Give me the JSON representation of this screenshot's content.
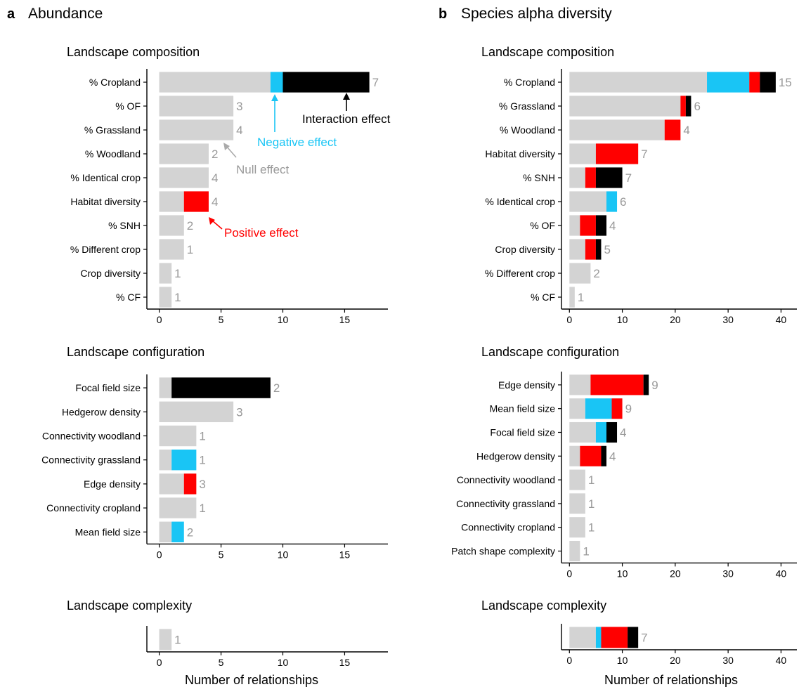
{
  "colors": {
    "null": "#d3d3d3",
    "negative": "#19c5f5",
    "positive": "#ff0000",
    "interaction": "#000000",
    "count": "#999999",
    "axis": "#000000"
  },
  "panels": [
    {
      "letter": "a",
      "title": "Abundance"
    },
    {
      "letter": "b",
      "title": "Species alpha diversity"
    }
  ],
  "annotations": {
    "interaction": "Interaction effect",
    "negative": "Negative effect",
    "null": "Null effect",
    "positive": "Positive effect"
  },
  "chart_data": [
    {
      "type": "bar",
      "stacked": true,
      "orientation": "horizontal",
      "panel": "a",
      "title": "Landscape composition",
      "xlabel": "",
      "xlim": [
        -1,
        18.5
      ],
      "xticks": [
        0,
        5,
        10,
        15
      ],
      "categories": [
        "% Cropland",
        "% OF",
        "% Grassland",
        "% Woodland",
        "% Identical crop",
        "Habitat diversity",
        "% SNH",
        "% Different crop",
        "Crop diversity",
        "% CF"
      ],
      "series": [
        {
          "key": "null",
          "values": [
            9,
            6,
            6,
            4,
            4,
            2,
            2,
            2,
            1,
            1
          ]
        },
        {
          "key": "negative",
          "values": [
            1,
            0,
            0,
            0,
            0,
            0,
            0,
            0,
            0,
            0
          ]
        },
        {
          "key": "positive",
          "values": [
            0,
            0,
            0,
            0,
            0,
            2,
            0,
            0,
            0,
            0
          ]
        },
        {
          "key": "interaction",
          "values": [
            7,
            0,
            0,
            0,
            0,
            0,
            0,
            0,
            0,
            0
          ]
        }
      ],
      "counts": [
        7,
        3,
        4,
        2,
        4,
        4,
        2,
        1,
        1,
        1
      ]
    },
    {
      "type": "bar",
      "stacked": true,
      "orientation": "horizontal",
      "panel": "a",
      "title": "Landscape configuration",
      "xlabel": "",
      "xlim": [
        -1,
        18.5
      ],
      "xticks": [
        0,
        5,
        10,
        15
      ],
      "categories": [
        "Focal field size",
        "Hedgerow density",
        "Connectivity woodland",
        "Connectivity grassland",
        "Edge density",
        "Connectivity cropland",
        "Mean field size"
      ],
      "series": [
        {
          "key": "null",
          "values": [
            1,
            6,
            3,
            1,
            2,
            3,
            1
          ]
        },
        {
          "key": "negative",
          "values": [
            0,
            0,
            0,
            2,
            0,
            0,
            1
          ]
        },
        {
          "key": "positive",
          "values": [
            0,
            0,
            0,
            0,
            1,
            0,
            0
          ]
        },
        {
          "key": "interaction",
          "values": [
            8,
            0,
            0,
            0,
            0,
            0,
            0
          ]
        }
      ],
      "counts": [
        2,
        3,
        1,
        1,
        3,
        1,
        2
      ]
    },
    {
      "type": "bar",
      "stacked": true,
      "orientation": "horizontal",
      "panel": "a",
      "title": "Landscape complexity",
      "xlabel": "Number of relationships",
      "xlim": [
        -1,
        18.5
      ],
      "xticks": [
        0,
        5,
        10,
        15
      ],
      "categories": [
        ""
      ],
      "series": [
        {
          "key": "null",
          "values": [
            1
          ]
        },
        {
          "key": "negative",
          "values": [
            0
          ]
        },
        {
          "key": "positive",
          "values": [
            0
          ]
        },
        {
          "key": "interaction",
          "values": [
            0
          ]
        }
      ],
      "counts": [
        1
      ]
    },
    {
      "type": "bar",
      "stacked": true,
      "orientation": "horizontal",
      "panel": "b",
      "title": "Landscape composition",
      "xlabel": "",
      "xlim": [
        -1.5,
        43
      ],
      "xticks": [
        0,
        10,
        20,
        30,
        40
      ],
      "categories": [
        "% Cropland",
        "% Grassland",
        "% Woodland",
        "Habitat diversity",
        "% SNH",
        "% Identical crop",
        "% OF",
        "Crop diversity",
        "% Different crop",
        "% CF"
      ],
      "series": [
        {
          "key": "null",
          "values": [
            26,
            21,
            18,
            5,
            3,
            7,
            2,
            3,
            4,
            1
          ]
        },
        {
          "key": "negative",
          "values": [
            8,
            0,
            0,
            0,
            0,
            2,
            0,
            0,
            0,
            0
          ]
        },
        {
          "key": "positive",
          "values": [
            2,
            1,
            3,
            8,
            2,
            0,
            3,
            2,
            0,
            0
          ]
        },
        {
          "key": "interaction",
          "values": [
            3,
            1,
            0,
            0,
            5,
            0,
            2,
            1,
            0,
            0
          ]
        }
      ],
      "counts": [
        15,
        6,
        4,
        7,
        7,
        6,
        4,
        5,
        2,
        1
      ]
    },
    {
      "type": "bar",
      "stacked": true,
      "orientation": "horizontal",
      "panel": "b",
      "title": "Landscape configuration",
      "xlabel": "",
      "xlim": [
        -1.5,
        43
      ],
      "xticks": [
        0,
        10,
        20,
        30,
        40
      ],
      "categories": [
        "Edge density",
        "Mean field size",
        "Focal field size",
        "Hedgerow density",
        "Connectivity woodland",
        "Connectivity grassland",
        "Connectivity cropland",
        "Patch shape complexity"
      ],
      "series": [
        {
          "key": "null",
          "values": [
            4,
            3,
            5,
            2,
            3,
            3,
            3,
            2
          ]
        },
        {
          "key": "negative",
          "values": [
            0,
            5,
            2,
            0,
            0,
            0,
            0,
            0
          ]
        },
        {
          "key": "positive",
          "values": [
            10,
            2,
            0,
            4,
            0,
            0,
            0,
            0
          ]
        },
        {
          "key": "interaction",
          "values": [
            1,
            0,
            2,
            1,
            0,
            0,
            0,
            0
          ]
        }
      ],
      "counts": [
        9,
        9,
        4,
        4,
        1,
        1,
        1,
        1
      ]
    },
    {
      "type": "bar",
      "stacked": true,
      "orientation": "horizontal",
      "panel": "b",
      "title": "Landscape complexity",
      "xlabel": "Number of relationships",
      "xlim": [
        -1.5,
        43
      ],
      "xticks": [
        0,
        10,
        20,
        30,
        40
      ],
      "categories": [
        ""
      ],
      "series": [
        {
          "key": "null",
          "values": [
            5
          ]
        },
        {
          "key": "negative",
          "values": [
            1
          ]
        },
        {
          "key": "positive",
          "values": [
            5
          ]
        },
        {
          "key": "interaction",
          "values": [
            2
          ]
        }
      ],
      "counts": [
        7
      ]
    }
  ]
}
